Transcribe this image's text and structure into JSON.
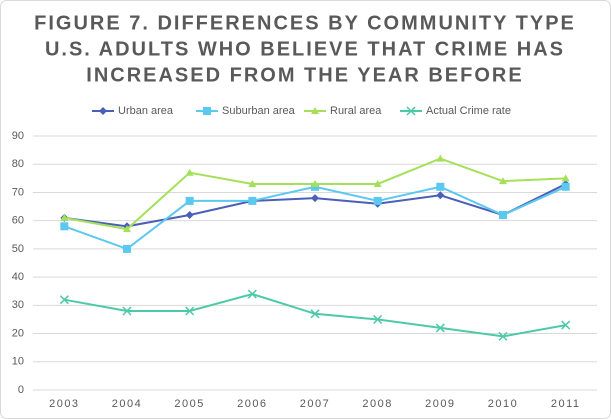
{
  "chart_data": {
    "type": "line",
    "title": [
      "FIGURE 7. DIFFERENCES BY COMMUNITY TYPE",
      "U.S. ADULTS WHO BELIEVE THAT CRIME HAS",
      "INCREASED FROM THE YEAR BEFORE"
    ],
    "categories": [
      "2003",
      "2004",
      "2005",
      "2006",
      "2007",
      "2008",
      "2009",
      "2010",
      "2011"
    ],
    "series": [
      {
        "name": "Urban area",
        "color": "#4a5fb8",
        "marker": "diamond",
        "values": [
          61,
          58,
          62,
          67,
          68,
          66,
          69,
          62,
          73
        ]
      },
      {
        "name": "Suburban area",
        "color": "#5bc8f0",
        "marker": "square",
        "values": [
          58,
          50,
          67,
          67,
          72,
          67,
          72,
          62,
          72
        ]
      },
      {
        "name": "Rural area",
        "color": "#a5e05a",
        "marker": "triangle",
        "values": [
          61,
          57,
          77,
          73,
          73,
          73,
          82,
          74,
          75
        ]
      },
      {
        "name": "Actual Crime rate",
        "color": "#4ec9a8",
        "marker": "x",
        "values": [
          32,
          28,
          28,
          34,
          27,
          25,
          22,
          19,
          23
        ]
      }
    ],
    "ylim": [
      0,
      90
    ],
    "yticks": [
      0,
      10,
      20,
      30,
      40,
      50,
      60,
      70,
      80,
      90
    ],
    "grid": true,
    "legend": "top"
  }
}
